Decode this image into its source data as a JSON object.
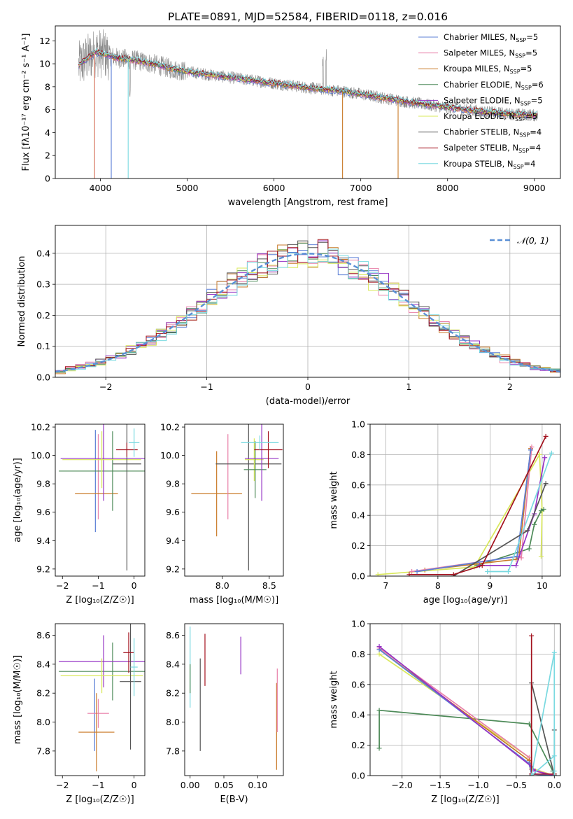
{
  "figure": {
    "title": "PLATE=0891, MJD=52584, FIBERID=0118, z=0.016"
  },
  "colors": {
    "Chabrier MILES": "#5b7fd6",
    "Salpeter MILES": "#e87fa8",
    "Kroupa MILES": "#c97a28",
    "Chabrier ELODIE": "#4d8a58",
    "Salpeter ELODIE": "#9432c4",
    "Kroupa ELODIE": "#d9e85a",
    "Chabrier STELIB": "#555555",
    "Salpeter STELIB": "#a3121e",
    "Kroupa STELIB": "#79d9e0",
    "orange": "#e06b1e",
    "grey_data": "#888888",
    "gaussian": "#5a8fd6"
  },
  "chart_data": [
    {
      "id": "spectrum",
      "type": "line",
      "title": "PLATE=0891, MJD=52584, FIBERID=0118, z=0.016",
      "xlabel": "wavelength [Angstrom, rest frame]",
      "ylabel": "Flux [fλ10⁻¹⁷ erg cm⁻² s⁻¹ A⁻¹]",
      "xlim": [
        3480,
        9300
      ],
      "ylim": [
        0,
        13.3
      ],
      "xticks": [
        4000,
        5000,
        6000,
        7000,
        8000,
        9000
      ],
      "yticks": [
        0,
        2,
        4,
        6,
        8,
        10,
        12
      ],
      "legend_position": "upper right",
      "series": [
        {
          "name": "Chabrier MILES, N_SSP=5",
          "label": "Chabrier MILES, N",
          "sub": "SSP",
          "tail": "=5"
        },
        {
          "name": "Salpeter MILES, N_SSP=5",
          "label": "Salpeter MILES, N",
          "sub": "SSP",
          "tail": "=5"
        },
        {
          "name": "Kroupa MILES, N_SSP=5",
          "label": "Kroupa MILES, N",
          "sub": "SSP",
          "tail": "=5"
        },
        {
          "name": "Chabrier ELODIE, N_SSP=6",
          "label": "Chabrier ELODIE, N",
          "sub": "SSP",
          "tail": "=6"
        },
        {
          "name": "Salpeter ELODIE, N_SSP=5",
          "label": "Salpeter ELODIE, N",
          "sub": "SSP",
          "tail": "=5"
        },
        {
          "name": "Kroupa ELODIE, N_SSP=5",
          "label": "Kroupa ELODIE, N",
          "sub": "SSP",
          "tail": "=5"
        },
        {
          "name": "Chabrier STELIB, N_SSP=4",
          "label": "Chabrier STELIB, N",
          "sub": "SSP",
          "tail": "=4"
        },
        {
          "name": "Salpeter STELIB, N_SSP=4",
          "label": "Salpeter STELIB, N",
          "sub": "SSP",
          "tail": "=4"
        },
        {
          "name": "Kroupa STELIB, N_SSP=4",
          "label": "Kroupa STELIB, N",
          "sub": "SSP",
          "tail": "=4"
        }
      ],
      "continuum": {
        "x": [
          3750,
          3850,
          3950,
          4050,
          4200,
          4400,
          4600,
          4800,
          5000,
          5300,
          5600,
          6000,
          6400,
          6800,
          7200,
          7600,
          7900,
          8200,
          8600,
          9000
        ],
        "y": [
          9.8,
          10.5,
          11.0,
          10.8,
          10.5,
          10.3,
          10.0,
          9.6,
          9.3,
          9.0,
          8.7,
          8.3,
          7.9,
          7.6,
          7.1,
          6.6,
          6.3,
          6.0,
          5.7,
          5.5
        ]
      }
    },
    {
      "id": "residuals",
      "type": "line",
      "xlabel": "(data-model)/error",
      "ylabel": "Normed distribution",
      "xlim": [
        -2.5,
        2.5
      ],
      "ylim": [
        0,
        0.49
      ],
      "xticks": [
        -2,
        -1,
        0,
        1,
        2
      ],
      "yticks": [
        0.0,
        0.1,
        0.2,
        0.3,
        0.4
      ],
      "grid": true,
      "legend": "𝒩(0, 1)",
      "legend_position": "upper right",
      "bins": 50,
      "bin_range": [
        -2.5,
        2.5
      ]
    },
    {
      "id": "age_vs_Z",
      "type": "scatter",
      "xlabel": "Z [log₁₀(Z/Z☉)]",
      "ylabel": "age [log₁₀(age/yr)]",
      "xlim": [
        -2.2,
        0.3
      ],
      "ylim": [
        9.15,
        10.22
      ],
      "xticks": [
        -2,
        -1,
        0
      ],
      "yticks": [
        9.2,
        9.4,
        9.6,
        9.8,
        10.0,
        10.2
      ],
      "points": [
        {
          "model": "Chabrier MILES",
          "x": -1.08,
          "xerr": 0.0,
          "y": 9.82,
          "yerr": 0.36
        },
        {
          "model": "Salpeter MILES",
          "x": -1.0,
          "xerr": 0.0,
          "y": 9.85,
          "yerr": 0.3
        },
        {
          "model": "Kroupa MILES",
          "x": -1.05,
          "xerr": 0.6,
          "y": 9.73,
          "yerr": 0.0
        },
        {
          "model": "Chabrier ELODIE",
          "x": -0.6,
          "xerr": 1.5,
          "y": 9.89,
          "yerr": 0.28
        },
        {
          "model": "Salpeter ELODIE",
          "x": -0.85,
          "xerr": 1.2,
          "y": 9.98,
          "yerr": 0.3
        },
        {
          "model": "Kroupa ELODIE",
          "x": -0.9,
          "xerr": 1.1,
          "y": 9.97,
          "yerr": 0.2
        },
        {
          "model": "Chabrier STELIB",
          "x": -0.2,
          "xerr": 0.4,
          "y": 9.94,
          "yerr": 0.75
        },
        {
          "model": "Salpeter STELIB",
          "x": -0.2,
          "xerr": 0.3,
          "y": 10.04,
          "yerr": 0.05
        },
        {
          "model": "Kroupa STELIB",
          "x": 0.0,
          "xerr": 0.15,
          "y": 10.09,
          "yerr": 0.1
        }
      ]
    },
    {
      "id": "age_vs_mass",
      "type": "scatter",
      "xlabel": "mass [log₁₀(M/M☉)]",
      "ylabel": "",
      "xlim": [
        7.6,
        8.65
      ],
      "ylim": [
        9.15,
        10.22
      ],
      "xticks": [
        8.0,
        8.5
      ],
      "yticks": [
        9.2,
        9.4,
        9.6,
        9.8,
        10.0,
        10.2
      ],
      "points": [
        {
          "model": "Kroupa MILES",
          "x": 7.94,
          "xerr": 0.27,
          "y": 9.73,
          "yerr": 0.3
        },
        {
          "model": "Salpeter MILES",
          "x": 8.06,
          "xerr": 0.0,
          "y": 9.85,
          "yerr": 0.3
        },
        {
          "model": "Chabrier STELIB",
          "x": 8.28,
          "xerr": 0.35,
          "y": 9.94,
          "yerr": 0.75
        },
        {
          "model": "Kroupa ELODIE",
          "x": 8.34,
          "xerr": 0.1,
          "y": 9.97,
          "yerr": 0.15
        },
        {
          "model": "Chabrier ELODIE",
          "x": 8.35,
          "xerr": 0.12,
          "y": 9.9,
          "yerr": 0.2
        },
        {
          "model": "Salpeter ELODIE",
          "x": 8.42,
          "xerr": 0.18,
          "y": 9.98,
          "yerr": 0.3
        },
        {
          "model": "Salpeter STELIB",
          "x": 8.49,
          "xerr": 0.15,
          "y": 10.04,
          "yerr": 0.13
        },
        {
          "model": "Kroupa STELIB",
          "x": 8.4,
          "xerr": 0.2,
          "y": 10.09,
          "yerr": 0.05
        }
      ]
    },
    {
      "id": "weight_vs_age",
      "type": "line",
      "xlabel": "age [log₁₀(age/yr)]",
      "ylabel": "mass weight",
      "xlim": [
        6.7,
        10.35
      ],
      "ylim": [
        0,
        1.0
      ],
      "xticks": [
        7,
        8,
        9,
        10
      ],
      "yticks": [
        0.0,
        0.2,
        0.4,
        0.6,
        0.8,
        1.0
      ],
      "grid": true,
      "series": [
        {
          "model": "Kroupa ELODIE",
          "x": [
            6.85,
            8.7,
            9.95,
            10.0,
            9.98
          ],
          "y": [
            0.01,
            0.06,
            0.8,
            0.43,
            0.13
          ]
        },
        {
          "model": "Chabrier ELODIE",
          "x": [
            8.75,
            9.75,
            9.85,
            9.98,
            10.03
          ],
          "y": [
            0.07,
            0.18,
            0.34,
            0.43,
            0.44
          ]
        },
        {
          "model": "Kroupa MILES",
          "x": [
            7.75,
            9.5,
            9.55,
            9.78
          ],
          "y": [
            0.04,
            0.11,
            0.12,
            0.84
          ]
        },
        {
          "model": "Salpeter MILES",
          "x": [
            7.5,
            9.55,
            9.6,
            9.8
          ],
          "y": [
            0.03,
            0.13,
            0.12,
            0.85
          ]
        },
        {
          "model": "Chabrier MILES",
          "x": [
            7.6,
            9.52,
            9.78
          ],
          "y": [
            0.03,
            0.13,
            0.83
          ]
        },
        {
          "model": "Salpeter ELODIE",
          "x": [
            8.8,
            9.5,
            9.85,
            10.05
          ],
          "y": [
            0.07,
            0.07,
            0.41,
            0.78
          ]
        },
        {
          "model": "Chabrier STELIB",
          "x": [
            8.3,
            9.72,
            10.07
          ],
          "y": [
            0.0,
            0.3,
            0.61
          ]
        },
        {
          "model": "Salpeter STELIB",
          "x": [
            7.45,
            8.3,
            8.85,
            10.07
          ],
          "y": [
            0.01,
            0.01,
            0.07,
            0.92
          ]
        },
        {
          "model": "Kroupa STELIB",
          "x": [
            8.95,
            9.35,
            10.18
          ],
          "y": [
            0.03,
            0.03,
            0.81
          ]
        }
      ]
    },
    {
      "id": "mass_vs_Z",
      "type": "scatter",
      "xlabel": "Z [log₁₀(Z/Z☉)]",
      "ylabel": "mass [log₁₀(M/M☉)]",
      "xlim": [
        -2.2,
        0.3
      ],
      "ylim": [
        7.63,
        8.68
      ],
      "xticks": [
        -2,
        -1,
        0
      ],
      "yticks": [
        7.8,
        8.0,
        8.2,
        8.4,
        8.6
      ],
      "points": [
        {
          "model": "Chabrier MILES",
          "x": -1.1,
          "xerr": 0.0,
          "y": 8.05,
          "yerr": 0.25
        },
        {
          "model": "Salpeter MILES",
          "x": -1.0,
          "xerr": 0.3,
          "y": 8.06,
          "yerr": 0.1
        },
        {
          "model": "Kroupa MILES",
          "x": -1.05,
          "xerr": 0.5,
          "y": 7.93,
          "yerr": 0.27
        },
        {
          "model": "Chabrier ELODIE",
          "x": -0.6,
          "xerr": 1.5,
          "y": 8.35,
          "yerr": 0.2
        },
        {
          "model": "Salpeter ELODIE",
          "x": -0.85,
          "xerr": 1.25,
          "y": 8.42,
          "yerr": 0.18
        },
        {
          "model": "Kroupa ELODIE",
          "x": -0.9,
          "xerr": 1.15,
          "y": 8.32,
          "yerr": 0.12
        },
        {
          "model": "Chabrier STELIB",
          "x": -0.1,
          "xerr": 0.3,
          "y": 8.28,
          "yerr": 0.47
        },
        {
          "model": "Salpeter STELIB",
          "x": -0.15,
          "xerr": 0.15,
          "y": 8.48,
          "yerr": 0.14
        },
        {
          "model": "Kroupa STELIB",
          "x": 0.0,
          "xerr": 0.1,
          "y": 8.38,
          "yerr": 0.2
        }
      ]
    },
    {
      "id": "mass_vs_EBV",
      "type": "scatter",
      "xlabel": "E(B-V)",
      "ylabel": "",
      "xlim": [
        -0.008,
        0.138
      ],
      "ylim": [
        7.63,
        8.68
      ],
      "xticks": [
        0.0,
        0.05,
        0.1
      ],
      "yticks": [
        7.8,
        8.0,
        8.2,
        8.4,
        8.6
      ],
      "points": [
        {
          "model": "Kroupa STELIB",
          "x": 0.0,
          "xerr": 0.0,
          "y": 8.38,
          "yerr": 0.28
        },
        {
          "model": "Chabrier ELODIE",
          "x": 0.0,
          "xerr": 0.0,
          "y": 8.3,
          "yerr": 0.1
        },
        {
          "model": "Chabrier STELIB",
          "x": 0.015,
          "xerr": 0.0,
          "y": 8.12,
          "yerr": 0.32
        },
        {
          "model": "Salpeter STELIB",
          "x": 0.022,
          "xerr": 0.0,
          "y": 8.43,
          "yerr": 0.18
        },
        {
          "model": "Salpeter ELODIE",
          "x": 0.075,
          "xerr": 0.0,
          "y": 8.46,
          "yerr": 0.13
        },
        {
          "model": "Kroupa MILES",
          "x": 0.128,
          "xerr": 0.0,
          "y": 7.97,
          "yerr": 0.3
        },
        {
          "model": "Salpeter MILES",
          "x": 0.129,
          "xerr": 0.0,
          "y": 8.15,
          "yerr": 0.22
        }
      ]
    },
    {
      "id": "weight_vs_Z",
      "type": "line",
      "xlabel": "Z [log₁₀(Z/Z☉)]",
      "ylabel": "mass weight",
      "xlim": [
        -2.42,
        0.08
      ],
      "ylim": [
        0,
        1.0
      ],
      "xticks": [
        -2.0,
        -1.5,
        -1.0,
        -0.5,
        0.0
      ],
      "yticks": [
        0.0,
        0.2,
        0.4,
        0.6,
        0.8,
        1.0
      ],
      "grid": true,
      "series": [
        {
          "model": "Chabrier ELODIE",
          "x": [
            -2.3,
            -2.3,
            -0.33,
            -0.02,
            0.0
          ],
          "y": [
            0.18,
            0.43,
            0.34,
            0.03,
            0.01
          ]
        },
        {
          "model": "Kroupa ELODIE",
          "x": [
            -2.3,
            -0.33,
            -0.3,
            0.0
          ],
          "y": [
            0.8,
            0.12,
            0.05,
            0.0
          ]
        },
        {
          "model": "Salpeter MILES",
          "x": [
            -2.3,
            -0.33,
            -0.3,
            0.0
          ],
          "y": [
            0.84,
            0.12,
            0.04,
            0.0
          ]
        },
        {
          "model": "Kroupa MILES",
          "x": [
            -2.3,
            -0.33,
            -0.3,
            0.0
          ],
          "y": [
            0.83,
            0.1,
            0.01,
            0.0
          ]
        },
        {
          "model": "Chabrier MILES",
          "x": [
            -2.3,
            -0.33,
            -0.3,
            0.0
          ],
          "y": [
            0.83,
            0.08,
            0.01,
            0.0
          ]
        },
        {
          "model": "Salpeter ELODIE",
          "x": [
            -2.3,
            -0.3,
            -0.25,
            0.0
          ],
          "y": [
            0.85,
            0.06,
            0.03,
            0.0
          ]
        },
        {
          "model": "Chabrier STELIB",
          "x": [
            -0.3,
            -0.3,
            0.0,
            0.0
          ],
          "y": [
            0.0,
            0.61,
            0.0,
            0.3
          ]
        },
        {
          "model": "Salpeter STELIB",
          "x": [
            -0.3,
            -0.3,
            -0.3,
            0.0
          ],
          "y": [
            0.0,
            0.92,
            0.01,
            0.01
          ]
        },
        {
          "model": "Kroupa STELIB",
          "x": [
            0.0,
            0.0,
            -0.3,
            0.0,
            0.0
          ],
          "y": [
            0.0,
            0.81,
            0.0,
            0.13,
            0.03
          ]
        }
      ]
    }
  ]
}
